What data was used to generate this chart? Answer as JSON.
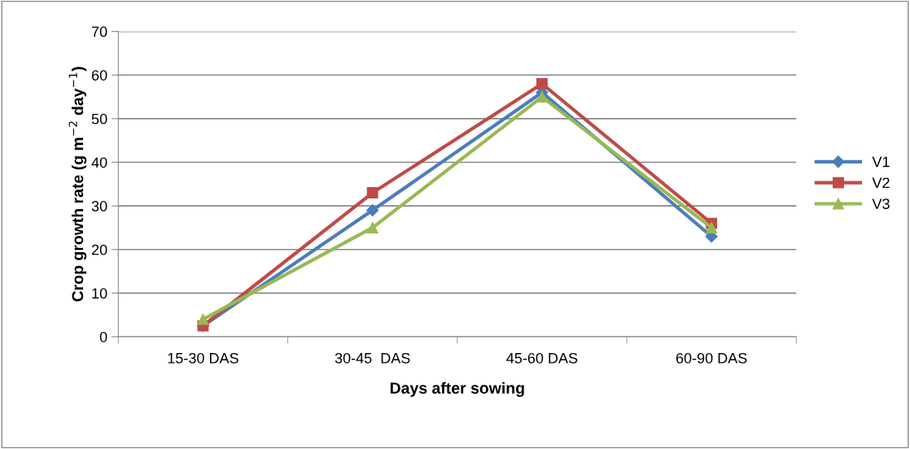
{
  "chart_data": {
    "type": "line",
    "xlabel": "Days after sowing",
    "ylabel": "Crop growth rate (g m$^{−2}$ day$^{−1}$)",
    "categories": [
      "15-30 DAS",
      "30-45  DAS",
      "45-60 DAS",
      "60-90 DAS"
    ],
    "series": [
      {
        "name": "V1",
        "color": "#4a7ebb",
        "marker": "diamond",
        "values": [
          2.5,
          29,
          56,
          23
        ]
      },
      {
        "name": "V2",
        "color": "#be4b48",
        "marker": "square",
        "values": [
          2.5,
          33,
          58,
          26
        ]
      },
      {
        "name": "V3",
        "color": "#98b954",
        "marker": "triangle",
        "values": [
          4,
          25,
          55,
          25
        ]
      }
    ],
    "ylim": [
      0,
      70
    ],
    "yticks": [
      0,
      10,
      20,
      30,
      40,
      50,
      60,
      70
    ],
    "grid": "y",
    "legend": "right",
    "line_style": "solid"
  }
}
